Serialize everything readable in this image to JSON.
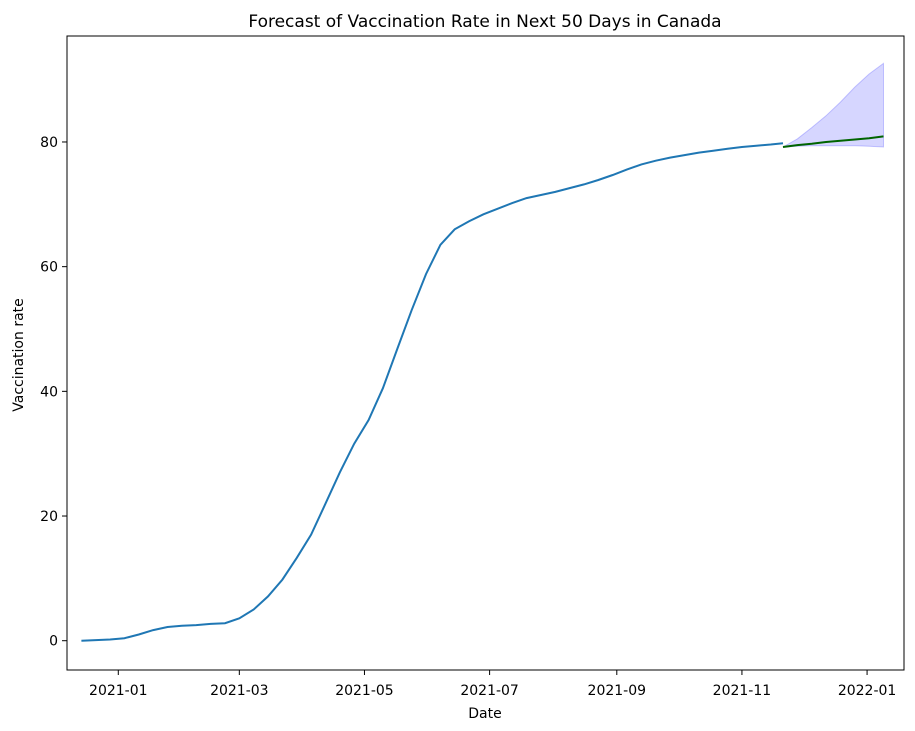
{
  "chart_data": {
    "type": "line",
    "title": "Forecast of Vaccination Rate in Next 50 Days in Canada",
    "xlabel": "Date",
    "ylabel": "Vaccination rate",
    "xlim": [
      "2020-12-07",
      "2022-01-19"
    ],
    "ylim": [
      -4.7,
      97.0
    ],
    "grid": false,
    "x_ticks": [
      "2021-01",
      "2021-03",
      "2021-05",
      "2021-07",
      "2021-09",
      "2021-11",
      "2022-01"
    ],
    "y_ticks": [
      0,
      20,
      40,
      60,
      80
    ],
    "colors": {
      "historical": "#1f77b4",
      "forecast": "#006400",
      "band": "#0000ff"
    },
    "series": [
      {
        "role": "historical",
        "x": [
          "2020-12-14",
          "2020-12-21",
          "2020-12-28",
          "2021-01-04",
          "2021-01-11",
          "2021-01-18",
          "2021-01-25",
          "2021-02-01",
          "2021-02-08",
          "2021-02-15",
          "2021-02-22",
          "2021-03-01",
          "2021-03-08",
          "2021-03-15",
          "2021-03-22",
          "2021-03-29",
          "2021-04-05",
          "2021-04-12",
          "2021-04-19",
          "2021-04-26",
          "2021-05-03",
          "2021-05-10",
          "2021-05-17",
          "2021-05-24",
          "2021-05-31",
          "2021-06-07",
          "2021-06-14",
          "2021-06-21",
          "2021-06-28",
          "2021-07-05",
          "2021-07-12",
          "2021-07-19",
          "2021-07-26",
          "2021-08-02",
          "2021-08-09",
          "2021-08-16",
          "2021-08-23",
          "2021-08-30",
          "2021-09-06",
          "2021-09-13",
          "2021-09-20",
          "2021-09-27",
          "2021-10-04",
          "2021-10-11",
          "2021-10-18",
          "2021-10-25",
          "2021-11-01",
          "2021-11-08",
          "2021-11-15",
          "2021-11-21"
        ],
        "values": [
          0.0,
          0.1,
          0.2,
          0.4,
          1.0,
          1.7,
          2.2,
          2.4,
          2.5,
          2.7,
          2.8,
          3.6,
          5.0,
          7.1,
          9.8,
          13.3,
          17.0,
          22.0,
          27.0,
          31.6,
          35.4,
          40.5,
          46.8,
          53.0,
          58.8,
          63.5,
          66.0,
          67.3,
          68.4,
          69.3,
          70.2,
          71.0,
          71.5,
          72.0,
          72.6,
          73.2,
          73.9,
          74.7,
          75.6,
          76.4,
          77.0,
          77.5,
          77.9,
          78.3,
          78.6,
          78.9,
          79.2,
          79.4,
          79.6,
          79.8
        ]
      },
      {
        "role": "forecast",
        "x": [
          "2021-11-21",
          "2021-11-28",
          "2021-12-05",
          "2021-12-12",
          "2021-12-19",
          "2021-12-26",
          "2022-01-02",
          "2022-01-09"
        ],
        "values": [
          79.2,
          79.5,
          79.7,
          80.0,
          80.2,
          80.4,
          80.6,
          80.9
        ],
        "lower": [
          79.2,
          79.3,
          79.4,
          79.4,
          79.4,
          79.4,
          79.3,
          79.2
        ],
        "upper": [
          79.2,
          80.5,
          82.3,
          84.2,
          86.4,
          88.8,
          90.9,
          92.6
        ]
      }
    ]
  }
}
